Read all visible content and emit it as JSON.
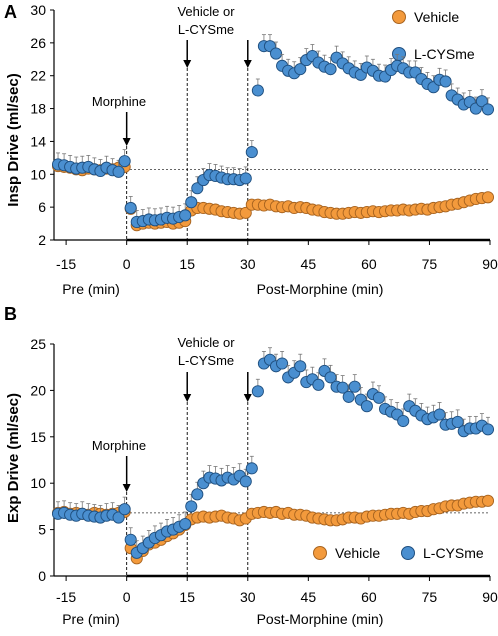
{
  "chart_data": [
    {
      "panel": "A",
      "type": "scatter",
      "ylabel": "Insp Drive (ml/sec)",
      "xlabel_pre": "Pre (min)",
      "xlabel_post": "Post-Morphine (min)",
      "xticks": [
        -15,
        0,
        15,
        30,
        45,
        60,
        75,
        90
      ],
      "yticks": [
        2,
        6,
        10,
        14,
        18,
        22,
        26,
        30
      ],
      "ylim": [
        2,
        30
      ],
      "xlim": [
        -18,
        90
      ],
      "baseline": 10.6,
      "annotations": [
        {
          "text": "Morphine",
          "x": 0
        },
        {
          "text": "Vehicle or",
          "x": 15
        },
        {
          "text": "L-CYSme",
          "x": 15
        }
      ],
      "legend": {
        "position": "top-right",
        "entries": [
          "Vehicle",
          "L-CYSme"
        ]
      },
      "colors": {
        "Vehicle": "#f39a3c",
        "L-CYSme": "#4a8fd0"
      },
      "series": [
        {
          "name": "Vehicle",
          "x": [
            -17,
            -15.5,
            -14,
            -12.5,
            -11,
            -9.5,
            -8,
            -6.5,
            -5,
            -3.5,
            -2,
            -0.5,
            1,
            2.5,
            4,
            5.5,
            7,
            8.5,
            10,
            11.5,
            13,
            14.5,
            16,
            17.5,
            19,
            20.5,
            22,
            23.5,
            25,
            26.5,
            28,
            29.5,
            31,
            32.5,
            34,
            35.5,
            37,
            38.5,
            40,
            41.5,
            43,
            44.5,
            46,
            47.5,
            49,
            50.5,
            52,
            53.5,
            55,
            56.5,
            58,
            59.5,
            61,
            62.5,
            64,
            65.5,
            67,
            68.5,
            70,
            71.5,
            73,
            74.5,
            76,
            77.5,
            79,
            80.5,
            82,
            83.5,
            85,
            86.5,
            88,
            89.5
          ],
          "y": [
            11.0,
            10.9,
            10.8,
            10.6,
            10.5,
            10.7,
            10.6,
            10.5,
            10.7,
            10.6,
            10.8,
            10.9,
            5.8,
            3.8,
            4.0,
            4.1,
            4.0,
            4.1,
            4.2,
            4.0,
            4.1,
            4.3,
            5.6,
            5.9,
            5.9,
            5.8,
            5.7,
            5.5,
            5.4,
            5.3,
            5.2,
            5.3,
            6.3,
            6.3,
            6.2,
            6.3,
            6.1,
            6.0,
            6.1,
            5.9,
            6.0,
            5.9,
            5.7,
            5.6,
            5.4,
            5.3,
            5.2,
            5.2,
            5.3,
            5.4,
            5.3,
            5.4,
            5.5,
            5.4,
            5.5,
            5.6,
            5.6,
            5.7,
            5.6,
            5.7,
            5.8,
            5.7,
            5.9,
            6.0,
            6.1,
            6.3,
            6.4,
            6.6,
            6.8,
            7.0,
            7.1,
            7.2
          ],
          "err": 0.5
        },
        {
          "name": "L-CYSme",
          "x": [
            -17,
            -15.5,
            -14,
            -12.5,
            -11,
            -9.5,
            -8,
            -6.5,
            -5,
            -3.5,
            -2,
            -0.5,
            1,
            2.5,
            4,
            5.5,
            7,
            8.5,
            10,
            11.5,
            13,
            14.5,
            16,
            17.5,
            19,
            20.5,
            22,
            23.5,
            25,
            26.5,
            28,
            29.5,
            31,
            32.5,
            34,
            35.5,
            37,
            38.5,
            40,
            41.5,
            43,
            44.5,
            46,
            47.5,
            49,
            50.5,
            52,
            53.5,
            55,
            56.5,
            58,
            59.5,
            61,
            62.5,
            64,
            65.5,
            67,
            68.5,
            70,
            71.5,
            73,
            74.5,
            76,
            77.5,
            79,
            80.5,
            82,
            83.5,
            85,
            86.5,
            88,
            89.5
          ],
          "y": [
            11.2,
            11.1,
            10.9,
            10.7,
            10.8,
            10.9,
            10.6,
            10.4,
            10.8,
            10.5,
            10.3,
            11.6,
            5.9,
            4.2,
            4.3,
            4.5,
            4.4,
            4.5,
            4.7,
            4.6,
            4.8,
            5.0,
            6.6,
            8.3,
            9.3,
            9.9,
            9.8,
            9.6,
            9.4,
            9.4,
            9.3,
            9.5,
            12.7,
            20.2,
            25.6,
            25.6,
            24.7,
            23.2,
            22.6,
            22.3,
            22.8,
            23.9,
            24.4,
            23.6,
            23.1,
            22.8,
            24.2,
            23.5,
            22.9,
            22.4,
            22.1,
            23.0,
            22.6,
            22.0,
            21.9,
            22.7,
            23.2,
            22.9,
            22.4,
            22.4,
            21.6,
            21.0,
            20.6,
            21.5,
            21.3,
            19.6,
            19.1,
            18.5,
            18.8,
            18.0,
            18.9,
            17.9
          ],
          "err": 1.4
        }
      ]
    },
    {
      "panel": "B",
      "type": "scatter",
      "ylabel": "Exp Drive (ml/sec)",
      "xlabel_pre": "Pre (min)",
      "xlabel_post": "Post-Morphine (min)",
      "xticks": [
        -15,
        0,
        15,
        30,
        45,
        60,
        75,
        90
      ],
      "yticks": [
        0,
        5,
        10,
        15,
        20,
        25
      ],
      "ylim": [
        0,
        25
      ],
      "xlim": [
        -18,
        90
      ],
      "baseline": 6.8,
      "annotations": [
        {
          "text": "Morphine",
          "x": 0
        },
        {
          "text": "Vehicle or",
          "x": 15
        },
        {
          "text": "L-CYSme",
          "x": 15
        }
      ],
      "legend": {
        "position": "bottom-right",
        "entries": [
          "Vehicle",
          "L-CYSme"
        ]
      },
      "colors": {
        "Vehicle": "#f39a3c",
        "L-CYSme": "#4a8fd0"
      },
      "series": [
        {
          "name": "Vehicle",
          "x": [
            -17,
            -15.5,
            -14,
            -12.5,
            -11,
            -9.5,
            -8,
            -6.5,
            -5,
            -3.5,
            -2,
            -0.5,
            1,
            2.5,
            4,
            5.5,
            7,
            8.5,
            10,
            11.5,
            13,
            14.5,
            16,
            17.5,
            19,
            20.5,
            22,
            23.5,
            25,
            26.5,
            28,
            29.5,
            31,
            32.5,
            34,
            35.5,
            37,
            38.5,
            40,
            41.5,
            43,
            44.5,
            46,
            47.5,
            49,
            50.5,
            52,
            53.5,
            55,
            56.5,
            58,
            59.5,
            61,
            62.5,
            64,
            65.5,
            67,
            68.5,
            70,
            71.5,
            73,
            74.5,
            76,
            77.5,
            79,
            80.5,
            82,
            83.5,
            85,
            86.5,
            88,
            89.5
          ],
          "y": [
            6.8,
            6.9,
            6.7,
            6.8,
            6.7,
            6.6,
            6.8,
            6.7,
            6.6,
            6.7,
            6.8,
            6.9,
            3.0,
            1.9,
            2.7,
            3.4,
            3.6,
            3.9,
            4.3,
            4.6,
            5.0,
            5.5,
            6.1,
            6.3,
            6.4,
            6.3,
            6.4,
            6.5,
            6.3,
            6.2,
            6.0,
            6.2,
            6.7,
            6.8,
            6.9,
            6.8,
            6.9,
            6.7,
            6.8,
            6.6,
            6.6,
            6.5,
            6.3,
            6.2,
            6.1,
            6.0,
            6.0,
            6.1,
            6.3,
            6.3,
            6.2,
            6.4,
            6.5,
            6.5,
            6.6,
            6.7,
            6.7,
            6.8,
            6.7,
            6.9,
            7.0,
            7.0,
            7.2,
            7.3,
            7.5,
            7.6,
            7.6,
            7.8,
            7.9,
            8.0,
            8.0,
            8.1
          ],
          "err": 0.5
        },
        {
          "name": "L-CYSme",
          "x": [
            -17,
            -15.5,
            -14,
            -12.5,
            -11,
            -9.5,
            -8,
            -6.5,
            -5,
            -3.5,
            -2,
            -0.5,
            1,
            2.5,
            4,
            5.5,
            7,
            8.5,
            10,
            11.5,
            13,
            14.5,
            16,
            17.5,
            19,
            20.5,
            22,
            23.5,
            25,
            26.5,
            28,
            29.5,
            31,
            32.5,
            34,
            35.5,
            37,
            38.5,
            40,
            41.5,
            43,
            44.5,
            46,
            47.5,
            49,
            50.5,
            52,
            53.5,
            55,
            56.5,
            58,
            59.5,
            61,
            62.5,
            64,
            65.5,
            67,
            68.5,
            70,
            71.5,
            73,
            74.5,
            76,
            77.5,
            79,
            80.5,
            82,
            83.5,
            85,
            86.5,
            88,
            89.5
          ],
          "y": [
            6.7,
            6.8,
            6.6,
            6.5,
            6.7,
            6.5,
            6.4,
            6.3,
            6.5,
            6.6,
            6.3,
            7.2,
            3.9,
            2.5,
            3.0,
            3.6,
            4.1,
            4.4,
            4.8,
            5.0,
            5.3,
            5.6,
            7.5,
            8.8,
            10.0,
            10.6,
            10.5,
            10.3,
            10.6,
            10.4,
            10.8,
            10.2,
            11.6,
            19.9,
            22.9,
            23.3,
            22.6,
            22.9,
            21.4,
            21.9,
            22.6,
            20.9,
            21.2,
            20.6,
            22.1,
            21.4,
            20.4,
            20.3,
            19.3,
            20.4,
            19.0,
            18.3,
            19.6,
            19.2,
            18.0,
            17.7,
            17.4,
            16.7,
            18.3,
            17.8,
            17.3,
            16.9,
            17.1,
            17.4,
            16.3,
            16.4,
            16.6,
            15.6,
            15.9,
            15.9,
            16.2,
            15.8
          ],
          "err": 1.3
        }
      ]
    }
  ],
  "panels": {
    "a": {
      "label": "A",
      "ylabel": "Insp Drive (ml/sec)",
      "xlabel_pre": "Pre (min)",
      "xlabel_post": "Post-Morphine (min)",
      "morphine": "Morphine",
      "vehicle_or": "Vehicle or",
      "lcysme": "L-CYSme",
      "legend_vehicle": "Vehicle",
      "legend_lcysme": "L-CYSme"
    },
    "b": {
      "label": "B",
      "ylabel": "Exp Drive (ml/sec)",
      "xlabel_pre": "Pre (min)",
      "xlabel_post": "Post-Morphine (min)",
      "morphine": "Morphine",
      "vehicle_or": "Vehicle or",
      "lcysme": "L-CYSme",
      "legend_vehicle": "Vehicle",
      "legend_lcysme": "L-CYSme"
    }
  }
}
